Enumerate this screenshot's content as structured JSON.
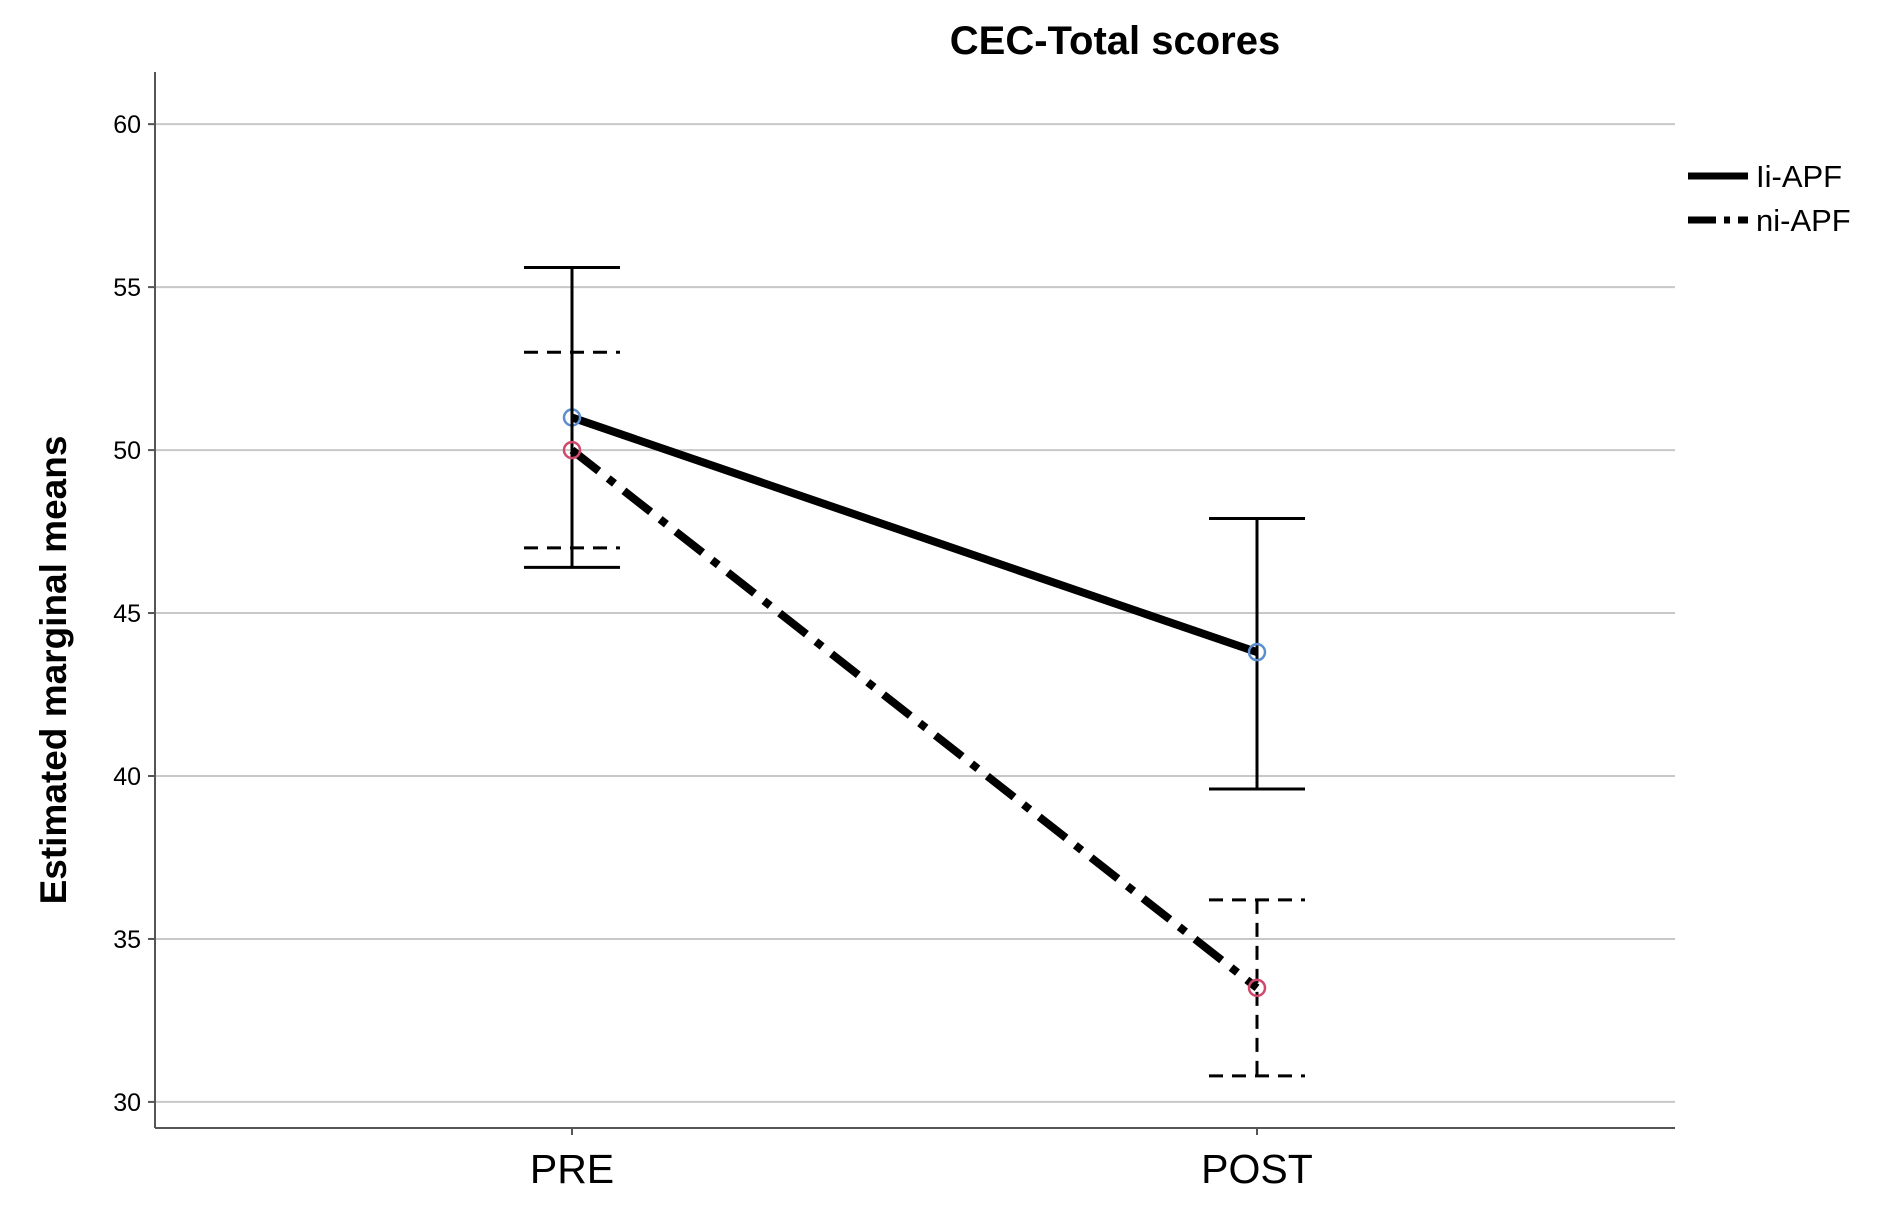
{
  "chart_data": {
    "type": "line",
    "title": "CEC-Total scores",
    "xlabel": "",
    "ylabel": "Estimated marginal means",
    "categories": [
      "PRE",
      "POST"
    ],
    "ylim": [
      29.2,
      61.6
    ],
    "yticks": [
      30,
      35,
      40,
      45,
      50,
      55,
      60
    ],
    "grid": true,
    "legend_position": "top-right",
    "series": [
      {
        "name": "Ii-APF",
        "values": [
          51.0,
          43.8
        ],
        "error_low": [
          46.4,
          39.6
        ],
        "error_high": [
          55.6,
          47.9
        ],
        "line_style": "solid",
        "marker_color": "#5b8fd0"
      },
      {
        "name": "ni-APF",
        "values": [
          50.0,
          33.5
        ],
        "error_low": [
          47.0,
          30.8
        ],
        "error_high": [
          53.0,
          36.2
        ],
        "line_style": "dash-dot",
        "marker_color": "#d0486a"
      }
    ]
  }
}
